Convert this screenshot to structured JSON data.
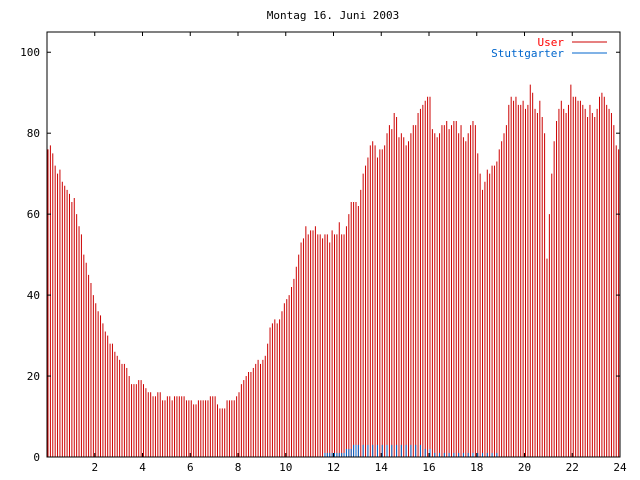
{
  "chart_data": {
    "type": "bar",
    "title": "Montag 16. Juni 2003",
    "xlabel": "",
    "ylabel": "",
    "xlim": [
      0,
      24
    ],
    "ylim": [
      0,
      105
    ],
    "xticks": [
      "2",
      "4",
      "6",
      "8",
      "10",
      "12",
      "14",
      "16",
      "18",
      "20",
      "22",
      "24"
    ],
    "yticks": [
      "0",
      "20",
      "40",
      "60",
      "80",
      "100"
    ],
    "grid": false,
    "legend_position": "top-right",
    "series": [
      {
        "name": "User",
        "color": "#cc0000",
        "points": [
          [
            0.0,
            76
          ],
          [
            0.1,
            77
          ],
          [
            0.2,
            75
          ],
          [
            0.3,
            72
          ],
          [
            0.4,
            70
          ],
          [
            0.5,
            71
          ],
          [
            0.6,
            68
          ],
          [
            0.7,
            67
          ],
          [
            0.8,
            66
          ],
          [
            0.9,
            65
          ],
          [
            1.0,
            63
          ],
          [
            1.1,
            64
          ],
          [
            1.2,
            60
          ],
          [
            1.3,
            57
          ],
          [
            1.4,
            55
          ],
          [
            1.5,
            50
          ],
          [
            1.6,
            48
          ],
          [
            1.7,
            45
          ],
          [
            1.8,
            43
          ],
          [
            1.9,
            40
          ],
          [
            2.0,
            38
          ],
          [
            2.1,
            36
          ],
          [
            2.2,
            35
          ],
          [
            2.3,
            33
          ],
          [
            2.4,
            31
          ],
          [
            2.5,
            30
          ],
          [
            2.6,
            28
          ],
          [
            2.7,
            28
          ],
          [
            2.8,
            26
          ],
          [
            2.9,
            25
          ],
          [
            3.0,
            24
          ],
          [
            3.1,
            23
          ],
          [
            3.2,
            23
          ],
          [
            3.3,
            22
          ],
          [
            3.4,
            20
          ],
          [
            3.5,
            18
          ],
          [
            3.6,
            18
          ],
          [
            3.7,
            18
          ],
          [
            3.8,
            19
          ],
          [
            3.9,
            19
          ],
          [
            4.0,
            18
          ],
          [
            4.1,
            17
          ],
          [
            4.2,
            16
          ],
          [
            4.3,
            16
          ],
          [
            4.4,
            15
          ],
          [
            4.5,
            15
          ],
          [
            4.6,
            16
          ],
          [
            4.7,
            16
          ],
          [
            4.8,
            14
          ],
          [
            4.9,
            14
          ],
          [
            5.0,
            15
          ],
          [
            5.1,
            15
          ],
          [
            5.2,
            14
          ],
          [
            5.3,
            15
          ],
          [
            5.4,
            15
          ],
          [
            5.5,
            15
          ],
          [
            5.6,
            15
          ],
          [
            5.7,
            15
          ],
          [
            5.8,
            14
          ],
          [
            5.9,
            14
          ],
          [
            6.0,
            14
          ],
          [
            6.1,
            13
          ],
          [
            6.2,
            13
          ],
          [
            6.3,
            14
          ],
          [
            6.4,
            14
          ],
          [
            6.5,
            14
          ],
          [
            6.6,
            14
          ],
          [
            6.7,
            14
          ],
          [
            6.8,
            15
          ],
          [
            6.9,
            15
          ],
          [
            7.0,
            15
          ],
          [
            7.1,
            13
          ],
          [
            7.2,
            12
          ],
          [
            7.3,
            12
          ],
          [
            7.4,
            12
          ],
          [
            7.5,
            14
          ],
          [
            7.6,
            14
          ],
          [
            7.7,
            14
          ],
          [
            7.8,
            14
          ],
          [
            7.9,
            15
          ],
          [
            8.0,
            16
          ],
          [
            8.1,
            18
          ],
          [
            8.2,
            19
          ],
          [
            8.3,
            20
          ],
          [
            8.4,
            21
          ],
          [
            8.5,
            21
          ],
          [
            8.6,
            22
          ],
          [
            8.7,
            23
          ],
          [
            8.8,
            24
          ],
          [
            8.9,
            23
          ],
          [
            9.0,
            24
          ],
          [
            9.1,
            25
          ],
          [
            9.2,
            28
          ],
          [
            9.3,
            32
          ],
          [
            9.4,
            33
          ],
          [
            9.5,
            34
          ],
          [
            9.6,
            33
          ],
          [
            9.7,
            34
          ],
          [
            9.8,
            36
          ],
          [
            9.9,
            38
          ],
          [
            10.0,
            39
          ],
          [
            10.1,
            40
          ],
          [
            10.2,
            42
          ],
          [
            10.3,
            44
          ],
          [
            10.4,
            47
          ],
          [
            10.5,
            50
          ],
          [
            10.6,
            53
          ],
          [
            10.7,
            54
          ],
          [
            10.8,
            57
          ],
          [
            10.9,
            55
          ],
          [
            11.0,
            56
          ],
          [
            11.1,
            56
          ],
          [
            11.2,
            57
          ],
          [
            11.3,
            55
          ],
          [
            11.4,
            55
          ],
          [
            11.5,
            54
          ],
          [
            11.6,
            55
          ],
          [
            11.7,
            55
          ],
          [
            11.8,
            53
          ],
          [
            11.9,
            56
          ],
          [
            12.0,
            55
          ],
          [
            12.1,
            55
          ],
          [
            12.2,
            58
          ],
          [
            12.3,
            55
          ],
          [
            12.4,
            55
          ],
          [
            12.5,
            57
          ],
          [
            12.6,
            60
          ],
          [
            12.7,
            63
          ],
          [
            12.8,
            63
          ],
          [
            12.9,
            63
          ],
          [
            13.0,
            62
          ],
          [
            13.1,
            66
          ],
          [
            13.2,
            70
          ],
          [
            13.3,
            72
          ],
          [
            13.4,
            74
          ],
          [
            13.5,
            77
          ],
          [
            13.6,
            78
          ],
          [
            13.7,
            77
          ],
          [
            13.8,
            74
          ],
          [
            13.9,
            76
          ],
          [
            14.0,
            76
          ],
          [
            14.1,
            77
          ],
          [
            14.2,
            80
          ],
          [
            14.3,
            82
          ],
          [
            14.4,
            81
          ],
          [
            14.5,
            85
          ],
          [
            14.6,
            84
          ],
          [
            14.7,
            79
          ],
          [
            14.8,
            80
          ],
          [
            14.9,
            79
          ],
          [
            15.0,
            77
          ],
          [
            15.1,
            78
          ],
          [
            15.2,
            80
          ],
          [
            15.3,
            82
          ],
          [
            15.4,
            82
          ],
          [
            15.5,
            85
          ],
          [
            15.6,
            86
          ],
          [
            15.7,
            87
          ],
          [
            15.8,
            88
          ],
          [
            15.9,
            89
          ],
          [
            16.0,
            89
          ],
          [
            16.1,
            81
          ],
          [
            16.2,
            80
          ],
          [
            16.3,
            79
          ],
          [
            16.4,
            80
          ],
          [
            16.5,
            82
          ],
          [
            16.6,
            82
          ],
          [
            16.7,
            83
          ],
          [
            16.8,
            81
          ],
          [
            16.9,
            82
          ],
          [
            17.0,
            83
          ],
          [
            17.1,
            83
          ],
          [
            17.2,
            80
          ],
          [
            17.3,
            82
          ],
          [
            17.4,
            79
          ],
          [
            17.5,
            78
          ],
          [
            17.6,
            80
          ],
          [
            17.7,
            82
          ],
          [
            17.8,
            83
          ],
          [
            17.9,
            82
          ],
          [
            18.0,
            75
          ],
          [
            18.1,
            70
          ],
          [
            18.2,
            66
          ],
          [
            18.3,
            68
          ],
          [
            18.4,
            71
          ],
          [
            18.5,
            70
          ],
          [
            18.6,
            72
          ],
          [
            18.7,
            72
          ],
          [
            18.8,
            73
          ],
          [
            18.9,
            76
          ],
          [
            19.0,
            78
          ],
          [
            19.1,
            80
          ],
          [
            19.2,
            82
          ],
          [
            19.3,
            87
          ],
          [
            19.4,
            89
          ],
          [
            19.5,
            88
          ],
          [
            19.6,
            89
          ],
          [
            19.7,
            87
          ],
          [
            19.8,
            87
          ],
          [
            19.9,
            88
          ],
          [
            20.0,
            86
          ],
          [
            20.1,
            87
          ],
          [
            20.2,
            92
          ],
          [
            20.3,
            90
          ],
          [
            20.4,
            86
          ],
          [
            20.5,
            85
          ],
          [
            20.6,
            88
          ],
          [
            20.7,
            84
          ],
          [
            20.8,
            80
          ],
          [
            20.9,
            49
          ],
          [
            21.0,
            60
          ],
          [
            21.1,
            70
          ],
          [
            21.2,
            78
          ],
          [
            21.3,
            83
          ],
          [
            21.4,
            86
          ],
          [
            21.5,
            88
          ],
          [
            21.6,
            86
          ],
          [
            21.7,
            85
          ],
          [
            21.8,
            87
          ],
          [
            21.9,
            92
          ],
          [
            22.0,
            89
          ],
          [
            22.1,
            89
          ],
          [
            22.2,
            88
          ],
          [
            22.3,
            88
          ],
          [
            22.4,
            87
          ],
          [
            22.5,
            86
          ],
          [
            22.6,
            84
          ],
          [
            22.7,
            87
          ],
          [
            22.8,
            85
          ],
          [
            22.9,
            84
          ],
          [
            23.0,
            86
          ],
          [
            23.1,
            89
          ],
          [
            23.2,
            90
          ],
          [
            23.3,
            89
          ],
          [
            23.4,
            87
          ],
          [
            23.5,
            86
          ],
          [
            23.6,
            85
          ],
          [
            23.7,
            82
          ],
          [
            23.8,
            77
          ],
          [
            23.9,
            76
          ]
        ]
      },
      {
        "name": "Stuttgarter",
        "color": "#0066cc",
        "points": [
          [
            11.5,
            0
          ],
          [
            11.6,
            1
          ],
          [
            11.7,
            1
          ],
          [
            11.8,
            1
          ],
          [
            11.9,
            1
          ],
          [
            12.0,
            1
          ],
          [
            12.1,
            1
          ],
          [
            12.2,
            1
          ],
          [
            12.3,
            1
          ],
          [
            12.4,
            1
          ],
          [
            12.5,
            2
          ],
          [
            12.6,
            2
          ],
          [
            12.7,
            2
          ],
          [
            12.8,
            3
          ],
          [
            12.9,
            3
          ],
          [
            13.0,
            3
          ],
          [
            13.2,
            3
          ],
          [
            13.4,
            3
          ],
          [
            13.6,
            3
          ],
          [
            13.8,
            3
          ],
          [
            14.0,
            3
          ],
          [
            14.2,
            3
          ],
          [
            14.4,
            3
          ],
          [
            14.6,
            3
          ],
          [
            14.8,
            3
          ],
          [
            15.0,
            3
          ],
          [
            15.2,
            3
          ],
          [
            15.4,
            3
          ],
          [
            15.6,
            3
          ],
          [
            15.8,
            2
          ],
          [
            16.0,
            2
          ],
          [
            16.2,
            1
          ],
          [
            16.4,
            1
          ],
          [
            16.6,
            1
          ],
          [
            16.8,
            1
          ],
          [
            17.0,
            1
          ],
          [
            17.2,
            1
          ],
          [
            17.4,
            1
          ],
          [
            17.6,
            1
          ],
          [
            17.8,
            1
          ],
          [
            18.0,
            1
          ],
          [
            18.2,
            1
          ],
          [
            18.4,
            1
          ],
          [
            18.6,
            1
          ],
          [
            18.8,
            1
          ],
          [
            18.9,
            0
          ]
        ]
      }
    ]
  }
}
